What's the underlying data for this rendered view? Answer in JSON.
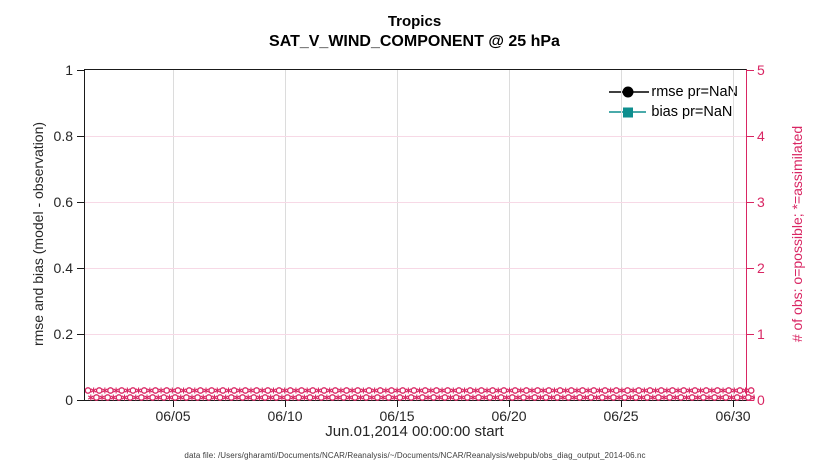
{
  "chart_data": {
    "type": "line",
    "title": "Tropics",
    "subtitle": "SAT_V_WIND_COMPONENT @ 25 hPa",
    "xlabel": "Jun.01,2014 00:00:00 start",
    "ylabel_left": "rmse and bias (model - observation)",
    "ylabel_right": "# of obs: o=possible; *=assimilated",
    "x_tick_labels": [
      "06/05",
      "06/10",
      "06/15",
      "06/20",
      "06/25",
      "06/30"
    ],
    "ylim_left": [
      0,
      1
    ],
    "y_tick_labels_left": [
      "0",
      "0.2",
      "0.4",
      "0.6",
      "0.8",
      "1"
    ],
    "ylim_right": [
      0,
      5
    ],
    "y_tick_labels_right": [
      "0",
      "1",
      "2",
      "3",
      "4",
      "5"
    ],
    "grid": true,
    "legend_position": "top-right-inside",
    "series": [
      {
        "name": "rmse pr=NaN",
        "pr": "NaN",
        "color": "#000000",
        "marker": "filled-circle",
        "values": []
      },
      {
        "name": "bias pr=NaN",
        "pr": "NaN",
        "color": "#0e8e8e",
        "marker": "filled-square",
        "values": []
      }
    ],
    "obs_counts": {
      "axis": "right",
      "possible_marker": "o",
      "assimilated_marker": "*",
      "per_time_value": 0,
      "color": "#d92663",
      "n_markers_per_row": 119,
      "rows": 2
    },
    "footnote": "data file: /Users/gharamti/Documents/NCAR/Reanalysis/~/Documents/NCAR/Reanalysis/webpub/obs_diag_output_2014-06.nc"
  },
  "colors": {
    "spine_dark": "#1a1a1a",
    "axis_pink": "#d92663",
    "grid_vertical": "#dcdcdc",
    "grid_horizontal": "#f7d9e6",
    "teal": "#0e8e8e",
    "background": "#ffffff"
  }
}
